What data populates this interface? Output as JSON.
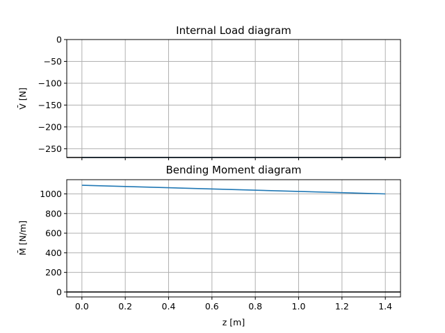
{
  "chart_data": [
    {
      "type": "line",
      "title": "Internal Load diagram",
      "xlabel": "",
      "ylabel": "V̄ [N]",
      "xlim": [
        -0.07,
        1.47
      ],
      "ylim": [
        -270,
        0
      ],
      "xticks": [
        0.0,
        0.2,
        0.4,
        0.6,
        0.8,
        1.0,
        1.2,
        1.4
      ],
      "yticks": [
        0,
        -50,
        -100,
        -150,
        -200,
        -250
      ],
      "ytick_labels": [
        "0",
        "−50",
        "−100",
        "−150",
        "−200",
        "−250"
      ],
      "grid": true,
      "series": [
        {
          "color": "#1f77b4",
          "x": [
            0.0,
            1.4
          ],
          "y": [
            -270,
            -270
          ]
        },
        {
          "color": "#000000",
          "x": [
            -0.07,
            1.47
          ],
          "y": [
            -270,
            -270
          ]
        }
      ]
    },
    {
      "type": "line",
      "title": "Bending Moment diagram",
      "xlabel": "z [m]",
      "ylabel": "M̄ [N/m]",
      "xlim": [
        -0.07,
        1.47
      ],
      "ylim": [
        -50,
        1145
      ],
      "xticks": [
        0.0,
        0.2,
        0.4,
        0.6,
        0.8,
        1.0,
        1.2,
        1.4
      ],
      "xtick_labels": [
        "0.0",
        "0.2",
        "0.4",
        "0.6",
        "0.8",
        "1.0",
        "1.2",
        "1.4"
      ],
      "yticks": [
        0,
        200,
        400,
        600,
        800,
        1000
      ],
      "ytick_labels": [
        "0",
        "200",
        "400",
        "600",
        "800",
        "1000"
      ],
      "grid": true,
      "series": [
        {
          "color": "#1f77b4",
          "x": [
            0.0,
            1.4
          ],
          "y": [
            1088,
            1000
          ]
        },
        {
          "color": "#000000",
          "x": [
            -0.07,
            1.47
          ],
          "y": [
            0,
            0
          ]
        }
      ]
    }
  ]
}
